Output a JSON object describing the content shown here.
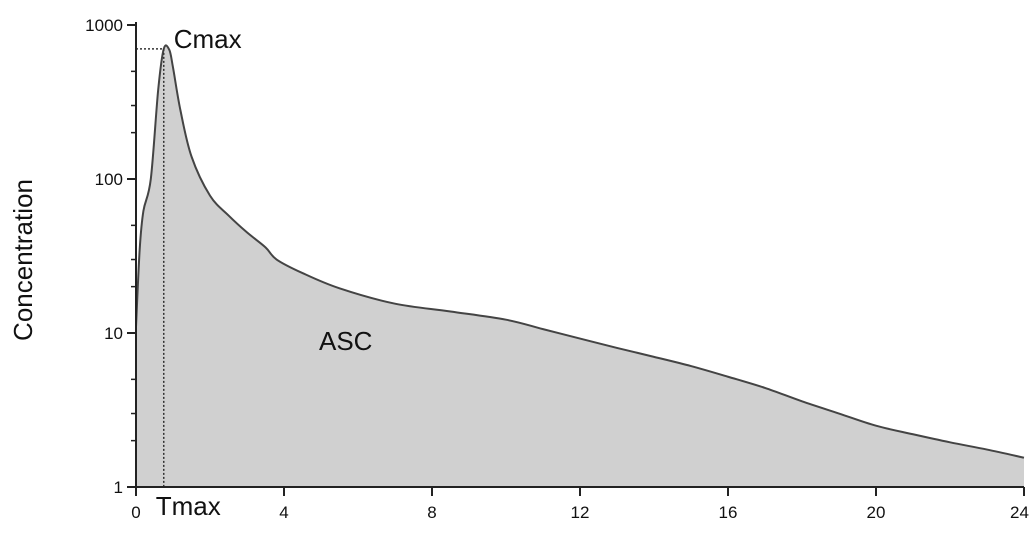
{
  "chart_data": {
    "type": "area",
    "title": "",
    "xlabel": "",
    "ylabel": "Concentration",
    "y_scale": "log",
    "xlim": [
      0,
      24
    ],
    "ylim": [
      1,
      1000
    ],
    "grid": false,
    "x_ticks": [
      0,
      4,
      8,
      12,
      16,
      20,
      24
    ],
    "x_tick_labels": [
      "0",
      "4",
      "8",
      "12",
      "16",
      "20",
      "24"
    ],
    "y_ticks": [
      1,
      10,
      100,
      1000
    ],
    "y_tick_labels": [
      "1",
      "10",
      "100",
      "1000"
    ],
    "y_minor_ticks": [
      2,
      3,
      5,
      20,
      30,
      50,
      200,
      300,
      500
    ],
    "fill_color": "#d0d0d0",
    "line_color": "#444444",
    "series": [
      {
        "x": [
          0,
          0.1,
          0.2,
          0.4,
          0.6,
          0.75,
          0.9,
          1.0,
          1.2,
          1.5,
          2.0,
          2.5,
          3.0,
          3.5,
          3.8,
          4.5,
          5.5,
          7.0,
          8.5,
          10.0,
          11.0,
          12.0,
          13.0,
          14.0,
          15.0,
          16.0,
          17.0,
          18.0,
          19.0,
          20.0,
          21.0,
          22.0,
          23.0,
          24.0
        ],
        "y": [
          11,
          35,
          62,
          100,
          380,
          700,
          690,
          530,
          280,
          140,
          78,
          58,
          45,
          36,
          30,
          24.5,
          19.5,
          15.5,
          13.8,
          12.2,
          10.6,
          9.2,
          8.0,
          7.0,
          6.1,
          5.2,
          4.4,
          3.6,
          3.0,
          2.5,
          2.2,
          1.95,
          1.75,
          1.55
        ]
      }
    ],
    "annotations": {
      "cmax_label": "Cmax",
      "tmax_label": "Tmax",
      "area_label": "ASC",
      "cmax_value": 700,
      "tmax_value": 0.75,
      "area_label_pos": [
        5.0,
        10
      ]
    }
  }
}
